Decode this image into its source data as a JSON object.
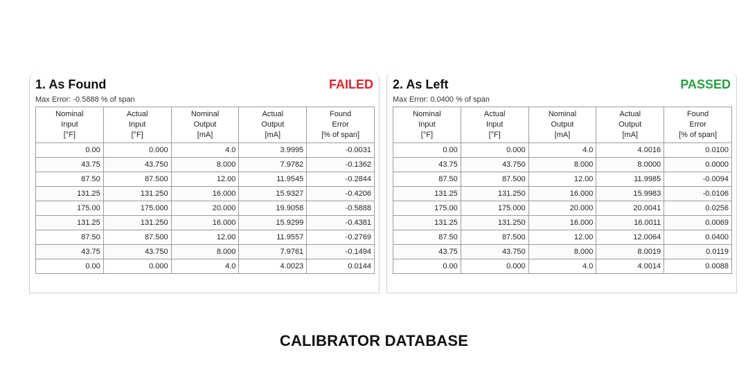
{
  "columns": [
    [
      "Nominal",
      "Input",
      "[°F]"
    ],
    [
      "Actual",
      "Input",
      "[°F]"
    ],
    [
      "Nominal",
      "Output",
      "[mA]"
    ],
    [
      "Actual",
      "Output",
      "[mA]"
    ],
    [
      "Found",
      "Error",
      "[% of span]"
    ]
  ],
  "as_found": {
    "title": "1. As Found",
    "status": "FAILED",
    "max_error": "Max Error: -0.5888 % of span",
    "rows": [
      [
        "0.00",
        "0.000",
        "4.0",
        "3.9995",
        "-0.0031"
      ],
      [
        "43.75",
        "43.750",
        "8.000",
        "7.9782",
        "-0.1362"
      ],
      [
        "87.50",
        "87.500",
        "12.00",
        "11.9545",
        "-0.2844"
      ],
      [
        "131.25",
        "131.250",
        "16.000",
        "15.9327",
        "-0.4206"
      ],
      [
        "175.00",
        "175.000",
        "20.000",
        "19.9058",
        "-0.5888"
      ],
      [
        "131.25",
        "131.250",
        "16.000",
        "15.9299",
        "-0.4381"
      ],
      [
        "87.50",
        "87.500",
        "12.00",
        "11.9557",
        "-0.2769"
      ],
      [
        "43.75",
        "43.750",
        "8.000",
        "7.9761",
        "-0.1494"
      ],
      [
        "0.00",
        "0.000",
        "4.0",
        "4.0023",
        "0.0144"
      ]
    ]
  },
  "as_left": {
    "title": "2. As Left",
    "status": "PASSED",
    "max_error": "Max Error: 0.0400 % of span",
    "rows": [
      [
        "0.00",
        "0.000",
        "4.0",
        "4.0016",
        "0.0100"
      ],
      [
        "43.75",
        "43.750",
        "8.000",
        "8.0000",
        "0.0000"
      ],
      [
        "87.50",
        "87.500",
        "12.00",
        "11.9985",
        "-0.0094"
      ],
      [
        "131.25",
        "131.250",
        "16.000",
        "15.9983",
        "-0.0106"
      ],
      [
        "175.00",
        "175.000",
        "20.000",
        "20.0041",
        "0.0256"
      ],
      [
        "131.25",
        "131.250",
        "16.000",
        "16.0011",
        "0.0069"
      ],
      [
        "87.50",
        "87.500",
        "12.00",
        "12.0064",
        "0.0400"
      ],
      [
        "43.75",
        "43.750",
        "8.000",
        "8.0019",
        "0.0119"
      ],
      [
        "0.00",
        "0.000",
        "4.0",
        "4.0014",
        "0.0088"
      ]
    ]
  },
  "colors": {
    "failed": "#e0242c",
    "passed": "#27a043"
  },
  "footer": {
    "caption": "CALIBRATOR DATABASE"
  }
}
